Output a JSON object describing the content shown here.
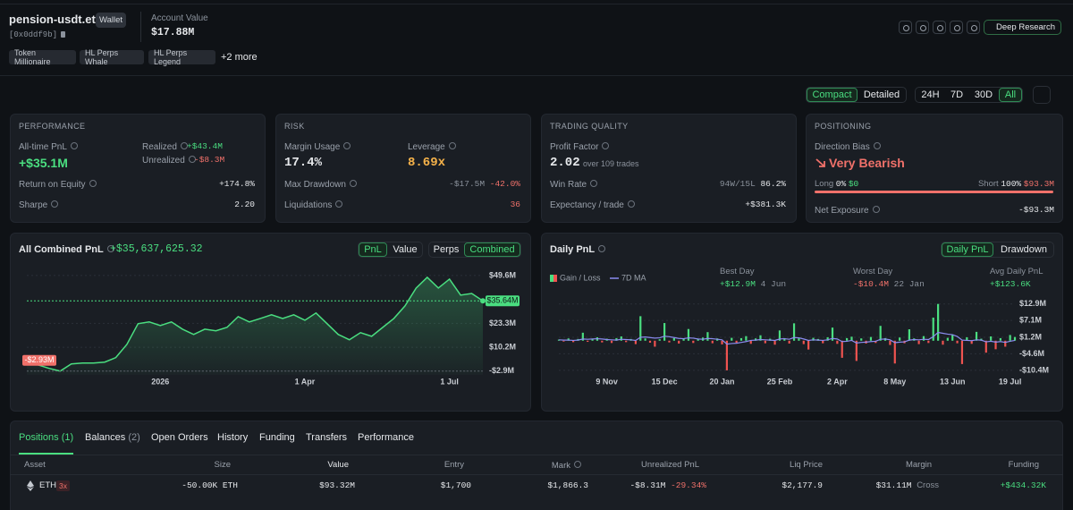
{
  "header": {
    "name": "pension-usdt.eth",
    "badge": "Wallet",
    "address": "[0x0ddf9b]",
    "account_value_label": "Account Value",
    "account_value": "$17.88M",
    "tags": [
      "Token Millionaire",
      "HL Perps Whale",
      "HL Perps Legend"
    ],
    "more": "+2 more",
    "deep_research": "Deep Research"
  },
  "toolbar": {
    "views": [
      "Compact",
      "Detailed"
    ],
    "ranges": [
      "24H",
      "7D",
      "30D",
      "All"
    ]
  },
  "cards": {
    "performance": {
      "title": "PERFORMANCE",
      "pnl_label": "All-time PnL",
      "pnl": "+$35.1M",
      "realized_label": "Realized",
      "realized": "+$43.4M",
      "unrealized_label": "Unrealized",
      "unrealized": "-$8.3M",
      "roe_label": "Return on Equity",
      "roe": "+174.8%",
      "sharpe_label": "Sharpe",
      "sharpe": "2.20"
    },
    "risk": {
      "title": "RISK",
      "margin_label": "Margin Usage",
      "margin": "17.4%",
      "leverage_label": "Leverage",
      "leverage": "8.69x",
      "drawdown_label": "Max Drawdown",
      "drawdown": "-$17.5M",
      "drawdown_pct": "-42.0%",
      "liquidations_label": "Liquidations",
      "liquidations": "36"
    },
    "quality": {
      "title": "TRADING QUALITY",
      "pf_label": "Profit Factor",
      "pf": "2.02",
      "pf_note": "over 109 trades",
      "winrate_label": "Win Rate",
      "winrate_record": "94W/15L",
      "winrate": "86.2%",
      "expectancy_label": "Expectancy / trade",
      "expectancy": "+$381.3K"
    },
    "positioning": {
      "title": "POSITIONING",
      "bias_label": "Direction Bias",
      "bias": "Very Bearish",
      "long_label": "Long",
      "long_pct": "0%",
      "long_value": "$0",
      "short_label": "Short",
      "short_pct": "100%",
      "short_value": "$93.3M",
      "net_label": "Net Exposure",
      "net": "-$93.3M"
    }
  },
  "pnl_panel": {
    "title": "All Combined PnL",
    "total": "+$35,637,625.32",
    "toggles": [
      "PnL",
      "Value"
    ],
    "scopes": [
      "Perps",
      "Combined"
    ]
  },
  "daily_panel": {
    "title": "Daily PnL",
    "toggles": [
      "Daily PnL",
      "Drawdown"
    ],
    "best_label": "Best Day",
    "best": "+$12.9M",
    "best_date": "4 Jun",
    "worst_label": "Worst Day",
    "worst": "-$10.4M",
    "worst_date": "22 Jan",
    "avg_label": "Avg Daily PnL",
    "avg": "+$123.6K"
  },
  "chart_data": [
    {
      "type": "line",
      "color": "#4ade80",
      "grid": true,
      "categories": [
        null,
        null,
        null,
        null,
        null,
        null,
        null,
        null,
        null,
        null,
        null,
        null,
        "2026",
        null,
        null,
        null,
        null,
        null,
        null,
        null,
        null,
        null,
        null,
        null,
        null,
        "1 Apr",
        null,
        null,
        null,
        null,
        null,
        null,
        null,
        null,
        null,
        null,
        null,
        null,
        "1 Jul",
        null,
        null,
        null
      ],
      "values": [
        2.0,
        0.5,
        -1.4,
        -2.93,
        1.0,
        1.5,
        1.5,
        2.0,
        4.5,
        11.8,
        23.1,
        24.1,
        22.1,
        24.1,
        20.1,
        17.2,
        20.1,
        19.2,
        21.1,
        27.0,
        24.1,
        26.0,
        28.0,
        26.0,
        28.0,
        25.0,
        29.0,
        23.1,
        17.2,
        14.3,
        18.2,
        16.2,
        21.1,
        26.0,
        32.9,
        42.7,
        48.6,
        42.7,
        47.6,
        38.8,
        39.7,
        35.64
      ],
      "ylim": [
        -5,
        52
      ],
      "yticks": [
        {
          "value": 49.6,
          "label": "$49.6M"
        },
        {
          "value": 23.3,
          "label": "$23.3M"
        },
        {
          "value": 10.2,
          "label": "$10.2M"
        },
        {
          "value": -2.9,
          "label": "-$2.9M"
        }
      ],
      "annotations": [
        {
          "value": 35.64,
          "label": "$35.64M"
        },
        {
          "value": -2.93,
          "label": "-$2.93M"
        }
      ]
    },
    {
      "type": "bar",
      "grid": true,
      "negative_color": "#ef5350",
      "categories": [
        null,
        null,
        null,
        null,
        null,
        null,
        null,
        null,
        null,
        null,
        "9 Nov",
        null,
        null,
        null,
        null,
        null,
        null,
        null,
        null,
        null,
        null,
        null,
        "15 Dec",
        null,
        null,
        null,
        null,
        null,
        null,
        null,
        null,
        null,
        null,
        null,
        "20 Jan",
        null,
        null,
        null,
        null,
        null,
        null,
        null,
        null,
        null,
        null,
        null,
        "25 Feb",
        null,
        null,
        null,
        null,
        null,
        null,
        null,
        null,
        null,
        null,
        null,
        "2 Apr",
        null,
        null,
        null,
        null,
        null,
        null,
        null,
        null,
        null,
        null,
        null,
        "8 May",
        null,
        null,
        null,
        null,
        null,
        null,
        null,
        null,
        null,
        null,
        null,
        "13 Jun",
        null,
        null,
        null,
        null,
        null,
        null,
        null,
        null,
        null,
        null,
        null,
        "19 Jul",
        null
      ],
      "series": [
        {
          "name": "Gain / Loss",
          "color": "#4ade80",
          "values": [
            0.4,
            -0.3,
            0.8,
            -0.5,
            0.6,
            2.8,
            -0.4,
            0.5,
            1.2,
            -0.6,
            0.7,
            -0.8,
            0.9,
            1.5,
            -0.5,
            0.6,
            -1.2,
            8.6,
            0.8,
            -0.7,
            -2.1,
            0.5,
            6.2,
            -0.6,
            0.9,
            -1.0,
            0.7,
            4.1,
            -0.8,
            0.6,
            1.1,
            3.0,
            -0.9,
            0.8,
            -1.3,
            -10.4,
            1.0,
            -0.7,
            0.9,
            1.6,
            -1.1,
            0.8,
            1.9,
            -0.9,
            0.7,
            -1.4,
            3.6,
            0.9,
            -1.0,
            6.1,
            0.8,
            -1.2,
            -3.1,
            1.0,
            0.6,
            -0.9,
            1.2,
            4.6,
            -1.1,
            -6.0,
            0.9,
            1.4,
            -7.1,
            0.8,
            -1.0,
            1.3,
            -0.8,
            5.2,
            0.9,
            -1.5,
            -8.0,
            1.1,
            -0.9,
            4.0,
            0.8,
            -1.2,
            1.6,
            -0.8,
            8.1,
            12.9,
            -1.4,
            1.0,
            2.2,
            -0.9,
            -8.2,
            1.2,
            -1.1,
            3.1,
            0.7,
            -4.2,
            1.5,
            -3.0,
            0.9,
            -2.1,
            2.0,
            1.3
          ]
        },
        {
          "name": "7D MA",
          "color": "#8b8cf0",
          "values": [
            0.3,
            0.2,
            0.2,
            0.1,
            0.2,
            0.6,
            0.5,
            0.6,
            0.7,
            0.6,
            0.4,
            0.3,
            0.2,
            0.5,
            0.4,
            0.3,
            0.1,
            1.2,
            1.3,
            1.1,
            0.9,
            1.0,
            1.6,
            1.4,
            1.1,
            0.8,
            0.7,
            1.0,
            0.9,
            0.6,
            0.5,
            0.8,
            0.7,
            0.5,
            0.3,
            -1.2,
            -1.0,
            -0.9,
            -0.6,
            -0.3,
            0.1,
            0.2,
            0.4,
            0.3,
            0.2,
            0.1,
            0.6,
            0.7,
            0.5,
            1.1,
            1.0,
            0.6,
            0.1,
            0.3,
            0.2,
            0.1,
            0.3,
            0.8,
            0.6,
            -0.3,
            -0.2,
            0.1,
            -0.8,
            -0.6,
            -0.5,
            -0.3,
            -0.2,
            0.5,
            0.6,
            0.3,
            -0.7,
            -0.5,
            -0.4,
            0.2,
            0.4,
            0.3,
            0.5,
            0.4,
            1.4,
            2.9,
            2.6,
            2.3,
            2.1,
            1.5,
            0.2,
            0.1,
            0.0,
            0.3,
            0.2,
            -0.4,
            -0.2,
            -0.5,
            -0.3,
            -0.6,
            -0.2,
            0.1
          ]
        }
      ],
      "ylim": [
        -12,
        15
      ],
      "yticks": [
        {
          "value": 12.9,
          "label": "$12.9M"
        },
        {
          "value": 7.1,
          "label": "$7.1M"
        },
        {
          "value": 1.2,
          "label": "$1.2M"
        },
        {
          "value": -4.6,
          "label": "-$4.6M"
        },
        {
          "value": -10.4,
          "label": "-$10.4M"
        }
      ]
    }
  ],
  "positions": {
    "tabs": [
      {
        "label": "Positions",
        "count": "(1)"
      },
      {
        "label": "Balances",
        "count": "(2)"
      },
      {
        "label": "Open Orders"
      },
      {
        "label": "History"
      },
      {
        "label": "Funding"
      },
      {
        "label": "Transfers"
      },
      {
        "label": "Performance"
      }
    ],
    "columns": [
      "Asset",
      "Size",
      "Value",
      "Entry",
      "Mark",
      "Unrealized PnL",
      "Liq Price",
      "Margin",
      "Funding"
    ],
    "rows": [
      {
        "asset": "ETH",
        "leverage": "3x",
        "size": "-50.00K ETH",
        "value": "$93.32M",
        "entry": "$1,700",
        "mark": "$1,866.3",
        "upnl": "-$8.31M",
        "upnl_pct": "-29.34%",
        "liq": "$2,177.9",
        "margin": "$31.11M",
        "margin_mode": "Cross",
        "funding": "+$434.32K"
      }
    ]
  }
}
